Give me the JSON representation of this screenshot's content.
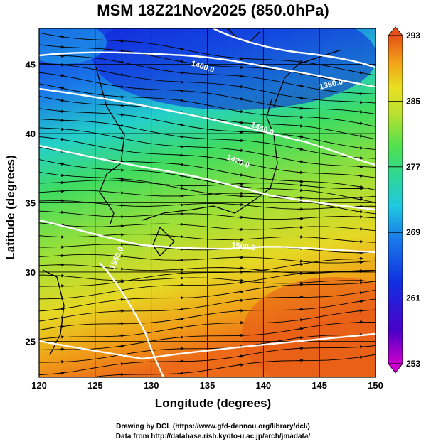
{
  "title": "MSM 18Z21Nov2025 (850.0hPa)",
  "x_axis": {
    "label": "Longitude (degrees)",
    "range": [
      120,
      150
    ],
    "ticks": [
      "120",
      "125",
      "130",
      "135",
      "140",
      "145",
      "150"
    ]
  },
  "y_axis": {
    "label": "Latitude  (degrees)",
    "range": [
      22.4,
      47.6
    ],
    "ticks": [
      "25",
      "30",
      "35",
      "40",
      "45"
    ]
  },
  "colorbar": {
    "ticks": [
      "293",
      "285",
      "277",
      "269",
      "261",
      "253"
    ],
    "range": [
      253,
      293
    ],
    "colors": [
      "#cc00cc",
      "#4b00c8",
      "#1030e0",
      "#1a7ae8",
      "#20c8e0",
      "#30d890",
      "#50e050",
      "#b8e030",
      "#e8e020",
      "#f0a018",
      "#e85018"
    ]
  },
  "contour_labels": [
    "1400.0",
    "1360.0",
    "1440.0",
    "1420.0",
    "1500.0",
    "1550.0"
  ],
  "credits": {
    "line1": "Drawing by DCL (https://www.gfd-dennou.org/library/dcl/)",
    "line2": "Data from http://database.rish.kyoto-u.ac.jp/arch/jmadata/"
  }
}
